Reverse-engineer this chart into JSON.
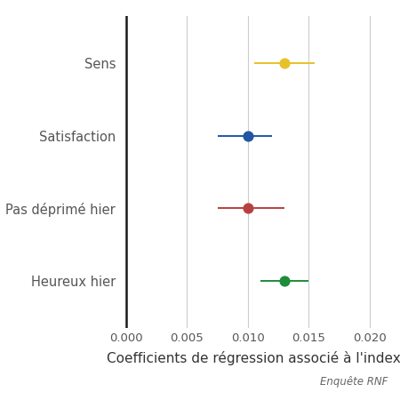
{
  "categories": [
    "Sens",
    "Satisfaction",
    "Pas déprimé hier",
    "Heureux hier"
  ],
  "centers": [
    0.013,
    0.01,
    0.01,
    0.013
  ],
  "ci_lower": [
    0.0105,
    0.0075,
    0.0075,
    0.011
  ],
  "ci_upper": [
    0.0155,
    0.012,
    0.013,
    0.015
  ],
  "colors": [
    "#E8C12A",
    "#2255A4",
    "#B94040",
    "#1E8C3A"
  ],
  "xlabel": "Coefficients de régression associé à l'index",
  "caption": "Enquête RNF",
  "xlim": [
    -0.0005,
    0.0215
  ],
  "xticks": [
    0.0,
    0.005,
    0.01,
    0.015,
    0.02
  ],
  "xticklabels": [
    "0.000",
    "0.005",
    "0.010",
    "0.015",
    "0.020"
  ],
  "vline_x": 0.0,
  "background_color": "#ffffff",
  "grid_color": "#cccccc",
  "label_fontsize": 10.5,
  "xlabel_fontsize": 11,
  "caption_fontsize": 8.5,
  "tick_fontsize": 9.5,
  "dot_size": 60,
  "line_width": 1.4
}
